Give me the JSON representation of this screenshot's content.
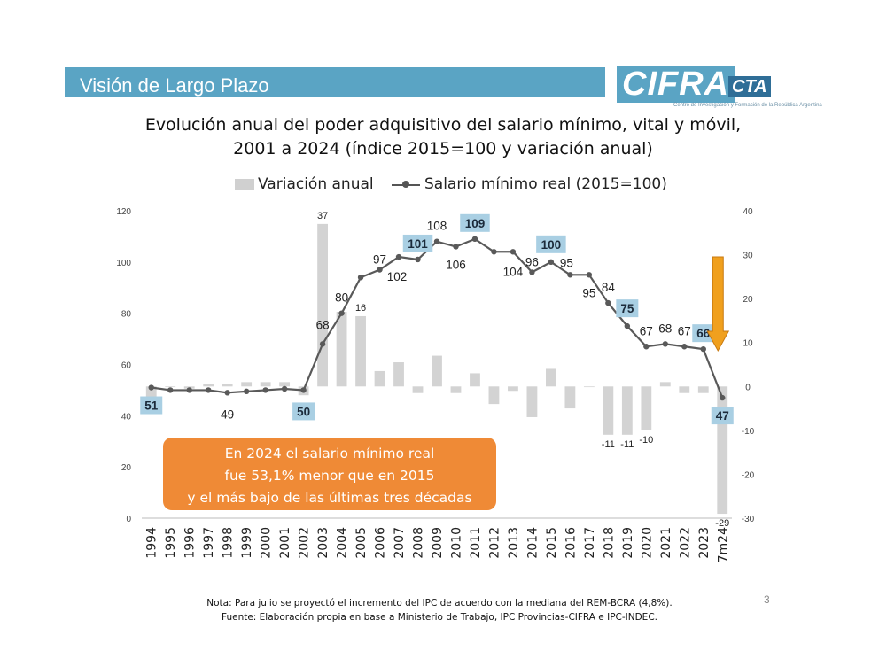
{
  "header": {
    "title": "Visión de Largo Plazo"
  },
  "logo": {
    "main": "CIFRA",
    "sub": "CTA",
    "tagline": "Centro de Investigación y Formación de la República Argentina"
  },
  "chart_data": {
    "type": "bar+line",
    "title_lines": [
      "Evolución anual del poder adquisitivo del salario mínimo, vital y móvil,",
      "2001 a 2024 (índice 2015=100 y variación anual)"
    ],
    "categories": [
      "1994",
      "1995",
      "1996",
      "1997",
      "1998",
      "1999",
      "2000",
      "2001",
      "2002",
      "2003",
      "2004",
      "2005",
      "2006",
      "2007",
      "2008",
      "2009",
      "2010",
      "2011",
      "2012",
      "2013",
      "2014",
      "2015",
      "2016",
      "2017",
      "2018",
      "2019",
      "2020",
      "2021",
      "2022",
      "2023",
      "7m24"
    ],
    "series": [
      {
        "name": "Variación anual",
        "type": "bar",
        "axis": "right",
        "values": [
          -3,
          0,
          -0.5,
          0.5,
          0.5,
          1,
          1,
          1,
          -2,
          37,
          17,
          16,
          3.5,
          5.5,
          -1.5,
          7,
          -1.5,
          3,
          -4,
          -1,
          -7,
          4,
          -5,
          0,
          -11,
          -11,
          -10,
          1,
          -1.5,
          -1.5,
          -29
        ]
      },
      {
        "name": "Salario mínimo real (2015=100)",
        "type": "line",
        "axis": "left",
        "values": [
          51,
          50,
          50,
          50,
          49,
          49.5,
          50,
          50.5,
          50,
          68,
          80,
          94,
          97,
          102,
          101,
          108,
          106,
          109,
          104,
          104,
          96,
          100,
          95,
          95,
          84,
          75,
          67,
          68,
          67,
          66,
          47
        ]
      }
    ],
    "left_axis": {
      "min": 0,
      "max": 120,
      "ticks": [
        "0",
        "20",
        "40",
        "60",
        "80",
        "100",
        "120"
      ]
    },
    "right_axis": {
      "min": -30,
      "max": 40,
      "ticks": [
        "-30",
        "-20",
        "-10",
        "0",
        "10",
        "20",
        "30",
        "40"
      ]
    },
    "bar_labels": [
      {
        "index": 9,
        "text": "37"
      },
      {
        "index": 11,
        "text": "16"
      },
      {
        "index": 24,
        "text": "-11"
      },
      {
        "index": 25,
        "text": "-11"
      },
      {
        "index": 26,
        "text": "-10"
      },
      {
        "index": 30,
        "text": "-29"
      }
    ],
    "line_labels": [
      {
        "index": 0,
        "text": "51",
        "boxed": true
      },
      {
        "index": 4,
        "text": "49",
        "boxed": false
      },
      {
        "index": 8,
        "text": "50",
        "boxed": true
      },
      {
        "index": 9,
        "text": "68",
        "boxed": false
      },
      {
        "index": 10,
        "text": "80",
        "boxed": false
      },
      {
        "index": 12,
        "text": "97",
        "boxed": false
      },
      {
        "index": 13,
        "text": "102",
        "boxed": false
      },
      {
        "index": 14,
        "text": "101",
        "boxed": true
      },
      {
        "index": 15,
        "text": "108",
        "boxed": false
      },
      {
        "index": 16,
        "text": "106",
        "boxed": false
      },
      {
        "index": 17,
        "text": "109",
        "boxed": true
      },
      {
        "index": 19,
        "text": "104",
        "boxed": false
      },
      {
        "index": 20,
        "text": "96",
        "boxed": false
      },
      {
        "index": 21,
        "text": "100",
        "boxed": true
      },
      {
        "index": 22,
        "text": "95",
        "boxed": false
      },
      {
        "index": 23,
        "text": "95",
        "boxed": false
      },
      {
        "index": 24,
        "text": "84",
        "boxed": false
      },
      {
        "index": 25,
        "text": "75",
        "boxed": true
      },
      {
        "index": 26,
        "text": "67",
        "boxed": false
      },
      {
        "index": 27,
        "text": "68",
        "boxed": false
      },
      {
        "index": 28,
        "text": "67",
        "boxed": false
      },
      {
        "index": 29,
        "text": "66",
        "boxed": true
      },
      {
        "index": 30,
        "text": "47",
        "boxed": true
      }
    ],
    "colors": {
      "bar": "#d3d3d3",
      "line": "#595959",
      "label_box": "#a9cfe3",
      "arrow": "#f0a01e"
    },
    "grid": false,
    "legend_position": "top"
  },
  "callout": {
    "lines": [
      "En 2024 el salario mínimo real",
      "fue 53,1% menor que en 2015",
      "y el más bajo de las últimas tres décadas"
    ]
  },
  "notes": {
    "line1": "Nota: Para julio se proyectó el incremento del IPC de acuerdo con la mediana del REM-BCRA (4,8%).",
    "line2": "Fuente: Elaboración propia en base a Ministerio de Trabajo, IPC Provincias-CIFRA e IPC-INDEC."
  },
  "page_number": "3"
}
